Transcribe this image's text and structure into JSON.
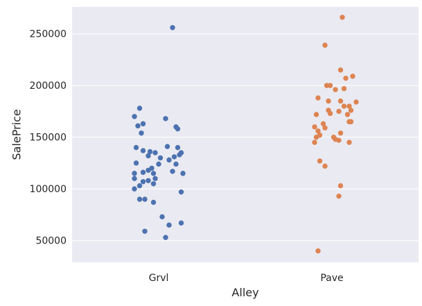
{
  "chart_data": {
    "type": "scatter",
    "style": "strip",
    "xlabel": "Alley",
    "ylabel": "SalePrice",
    "ylim": [
      29000,
      276000
    ],
    "yticks": [
      50000,
      100000,
      150000,
      200000,
      250000
    ],
    "grid": true,
    "categories": [
      "Grvl",
      "Pave"
    ],
    "colors": {
      "background": "#eaeaf2",
      "grid": "#ffffff",
      "Grvl": "#4c72b0",
      "Pave": "#dd8452"
    },
    "series": [
      {
        "category": "Grvl",
        "points": [
          {
            "x": 0.08,
            "y": 256000
          },
          {
            "x": -0.11,
            "y": 178000
          },
          {
            "x": -0.14,
            "y": 170000
          },
          {
            "x": 0.04,
            "y": 168000
          },
          {
            "x": -0.12,
            "y": 161000
          },
          {
            "x": -0.09,
            "y": 163000
          },
          {
            "x": 0.1,
            "y": 160000
          },
          {
            "x": 0.11,
            "y": 158000
          },
          {
            "x": -0.1,
            "y": 154000
          },
          {
            "x": -0.13,
            "y": 140000
          },
          {
            "x": 0.05,
            "y": 141000
          },
          {
            "x": 0.11,
            "y": 140000
          },
          {
            "x": -0.09,
            "y": 137000
          },
          {
            "x": -0.05,
            "y": 136000
          },
          {
            "x": -0.02,
            "y": 135000
          },
          {
            "x": 0.13,
            "y": 135000
          },
          {
            "x": 0.12,
            "y": 133000
          },
          {
            "x": 0.09,
            "y": 131000
          },
          {
            "x": -0.06,
            "y": 132000
          },
          {
            "x": 0.01,
            "y": 130000
          },
          {
            "x": 0.06,
            "y": 128000
          },
          {
            "x": -0.13,
            "y": 125000
          },
          {
            "x": 0.0,
            "y": 124000
          },
          {
            "x": 0.1,
            "y": 124000
          },
          {
            "x": -0.04,
            "y": 120000
          },
          {
            "x": -0.06,
            "y": 118000
          },
          {
            "x": 0.08,
            "y": 117000
          },
          {
            "x": -0.09,
            "y": 116000
          },
          {
            "x": -0.14,
            "y": 115000
          },
          {
            "x": -0.03,
            "y": 115000
          },
          {
            "x": 0.14,
            "y": 115000
          },
          {
            "x": -0.14,
            "y": 110000
          },
          {
            "x": -0.02,
            "y": 110000
          },
          {
            "x": -0.06,
            "y": 108000
          },
          {
            "x": -0.09,
            "y": 107000
          },
          {
            "x": -0.03,
            "y": 105000
          },
          {
            "x": -0.11,
            "y": 103000
          },
          {
            "x": -0.14,
            "y": 100000
          },
          {
            "x": 0.13,
            "y": 97000
          },
          {
            "x": -0.11,
            "y": 90000
          },
          {
            "x": -0.08,
            "y": 90000
          },
          {
            "x": -0.03,
            "y": 87000
          },
          {
            "x": 0.02,
            "y": 73000
          },
          {
            "x": 0.13,
            "y": 67000
          },
          {
            "x": 0.06,
            "y": 65000
          },
          {
            "x": -0.08,
            "y": 59000
          },
          {
            "x": 0.04,
            "y": 53000
          }
        ]
      },
      {
        "category": "Pave",
        "points": [
          {
            "x": 0.06,
            "y": 266000
          },
          {
            "x": -0.04,
            "y": 239000
          },
          {
            "x": 0.05,
            "y": 215000
          },
          {
            "x": 0.12,
            "y": 209000
          },
          {
            "x": 0.08,
            "y": 207000
          },
          {
            "x": -0.03,
            "y": 200000
          },
          {
            "x": -0.01,
            "y": 200000
          },
          {
            "x": 0.07,
            "y": 197000
          },
          {
            "x": 0.02,
            "y": 196000
          },
          {
            "x": -0.02,
            "y": 185000
          },
          {
            "x": 0.05,
            "y": 185000
          },
          {
            "x": 0.14,
            "y": 184000
          },
          {
            "x": -0.08,
            "y": 188000
          },
          {
            "x": 0.07,
            "y": 180000
          },
          {
            "x": 0.1,
            "y": 180000
          },
          {
            "x": 0.11,
            "y": 176000
          },
          {
            "x": 0.04,
            "y": 175000
          },
          {
            "x": -0.02,
            "y": 176000
          },
          {
            "x": -0.01,
            "y": 173000
          },
          {
            "x": -0.09,
            "y": 172000
          },
          {
            "x": 0.09,
            "y": 172000
          },
          {
            "x": 0.1,
            "y": 165000
          },
          {
            "x": 0.11,
            "y": 165000
          },
          {
            "x": -0.05,
            "y": 163000
          },
          {
            "x": -0.1,
            "y": 160000
          },
          {
            "x": -0.04,
            "y": 159000
          },
          {
            "x": -0.08,
            "y": 156000
          },
          {
            "x": 0.05,
            "y": 154000
          },
          {
            "x": -0.07,
            "y": 152000
          },
          {
            "x": -0.09,
            "y": 150000
          },
          {
            "x": 0.01,
            "y": 150000
          },
          {
            "x": 0.02,
            "y": 148000
          },
          {
            "x": 0.04,
            "y": 147000
          },
          {
            "x": -0.1,
            "y": 145000
          },
          {
            "x": 0.1,
            "y": 145000
          },
          {
            "x": -0.07,
            "y": 127000
          },
          {
            "x": -0.04,
            "y": 122000
          },
          {
            "x": 0.05,
            "y": 103000
          },
          {
            "x": 0.04,
            "y": 93000
          },
          {
            "x": -0.08,
            "y": 40000
          }
        ]
      }
    ]
  }
}
